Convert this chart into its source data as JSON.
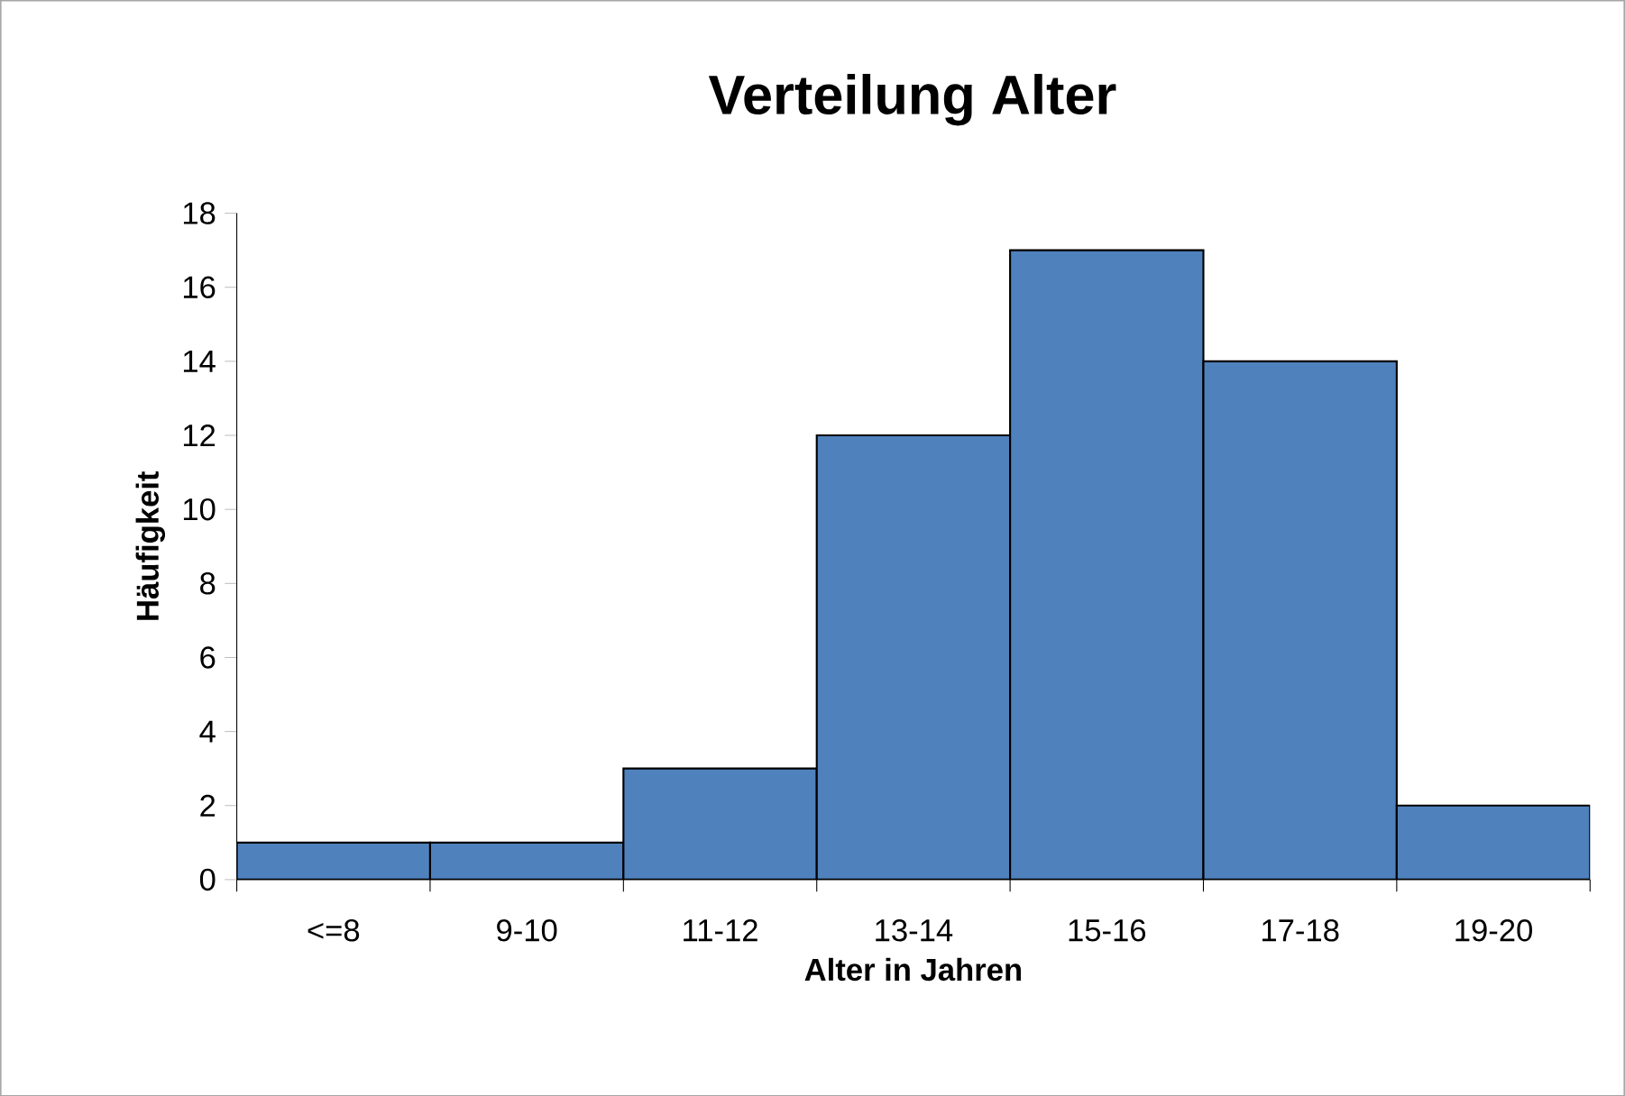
{
  "chart_data": {
    "type": "bar",
    "title": "Verteilung Alter",
    "xlabel": "Alter in Jahren",
    "ylabel": "Häufigkeit",
    "categories": [
      "<=8",
      "9-10",
      "11-12",
      "13-14",
      "15-16",
      "17-18",
      "19-20"
    ],
    "values": [
      1,
      1,
      3,
      12,
      17,
      14,
      2
    ],
    "color": "#4f81bd",
    "ylim": [
      0,
      18
    ],
    "yticks": [
      0,
      2,
      4,
      6,
      8,
      10,
      12,
      14,
      16,
      18
    ],
    "grid": false
  }
}
